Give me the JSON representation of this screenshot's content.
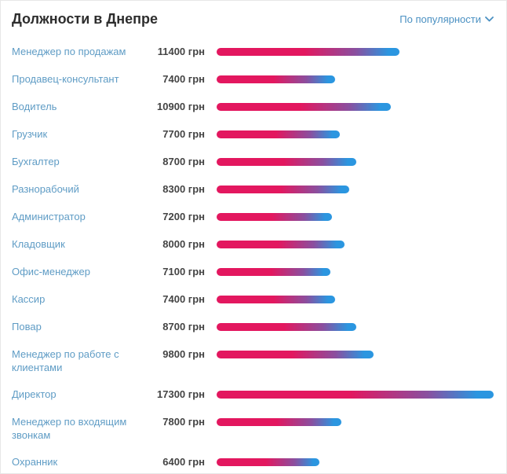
{
  "header": {
    "title": "Должности в Днепре",
    "sort_label": "По популярности",
    "sort_icon": "chevron-down"
  },
  "colors": {
    "bar_gradient_start": "#e3175f",
    "bar_gradient_mid": "#8a4f9f",
    "bar_gradient_end": "#2b96e0",
    "label_link": "#5f9cc5",
    "sort_link": "#4a90c2",
    "value_text": "#444444",
    "title_text": "#2d2d2d"
  },
  "chart_data": {
    "type": "bar",
    "orientation": "horizontal",
    "title": "Должности в Днепре",
    "unit": "грн",
    "sort": "По популярности",
    "xlim": [
      0,
      17300
    ],
    "grid": false,
    "legend": false,
    "categories": [
      "Менеджер по продажам",
      "Продавец-консультант",
      "Водитель",
      "Грузчик",
      "Бухгалтер",
      "Разнорабочий",
      "Администратор",
      "Кладовщик",
      "Офис-менеджер",
      "Кассир",
      "Повар",
      "Менеджер по работе с клиентами",
      "Директор",
      "Менеджер по входящим звонкам",
      "Охранник"
    ],
    "values": [
      11400,
      7400,
      10900,
      7700,
      8700,
      8300,
      7200,
      8000,
      7100,
      7400,
      8700,
      9800,
      17300,
      7800,
      6400
    ],
    "value_labels": [
      "11400 грн",
      "7400 грн",
      "10900 грн",
      "7700 грн",
      "8700 грн",
      "8300 грн",
      "7200 грн",
      "8000 грн",
      "7100 грн",
      "7400 грн",
      "8700 грн",
      "9800 грн",
      "17300 грн",
      "7800 грн",
      "6400 грн"
    ]
  }
}
